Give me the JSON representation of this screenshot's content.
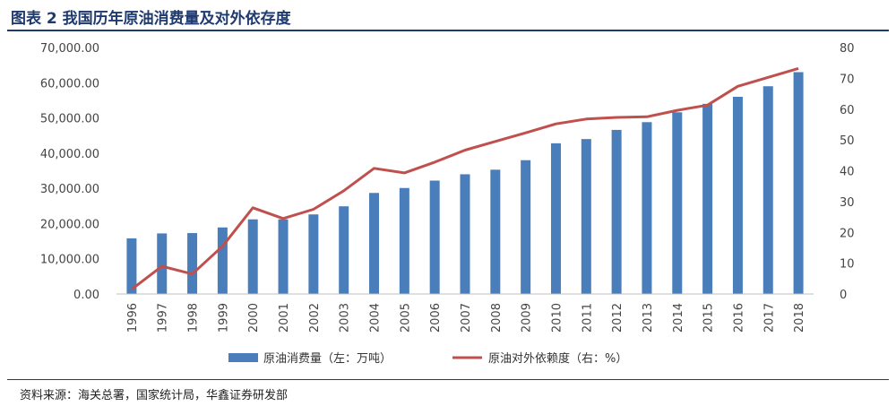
{
  "header": {
    "title": "图表 2 我国历年原油消费量及对外依存度"
  },
  "footer": {
    "source": "资料来源：海关总署，国家统计局，华鑫证券研发部"
  },
  "chart_data": {
    "type": "bar",
    "title": "",
    "categories": [
      "1996",
      "1997",
      "1998",
      "1999",
      "2000",
      "2001",
      "2002",
      "2003",
      "2004",
      "2005",
      "2006",
      "2007",
      "2008",
      "2009",
      "2010",
      "2011",
      "2012",
      "2013",
      "2014",
      "2015",
      "2016",
      "2017",
      "2018"
    ],
    "series": [
      {
        "name": "原油消费量（左：万吨）",
        "type": "bar",
        "axis": "left",
        "color": "#4a7ebb",
        "values": [
          15800,
          17200,
          17300,
          18900,
          21200,
          21200,
          22600,
          24900,
          28700,
          30100,
          32200,
          34000,
          35300,
          38000,
          42800,
          44000,
          46600,
          48800,
          51600,
          54000,
          56000,
          59000,
          63000
        ]
      },
      {
        "name": "原油对外依赖度（右：%）",
        "type": "line",
        "axis": "right",
        "color": "#c0504d",
        "values": [
          1.5,
          9,
          6.5,
          15.5,
          28,
          24.5,
          27.5,
          33.5,
          40.8,
          39.3,
          42.8,
          46.7,
          49.5,
          52.3,
          55.2,
          56.8,
          57.3,
          57.5,
          59.6,
          61.3,
          67.4,
          70.3,
          73.2
        ]
      }
    ],
    "y_left": {
      "min": 0,
      "max": 70000,
      "step": 10000,
      "tick_labels": [
        "0.00",
        "10,000.00",
        "20,000.00",
        "30,000.00",
        "40,000.00",
        "50,000.00",
        "60,000.00",
        "70,000.00"
      ]
    },
    "y_right": {
      "min": 0,
      "max": 80,
      "step": 10,
      "tick_labels": [
        "0",
        "10",
        "20",
        "30",
        "40",
        "50",
        "60",
        "70",
        "80"
      ]
    },
    "grid": false,
    "legend_position": "bottom"
  }
}
